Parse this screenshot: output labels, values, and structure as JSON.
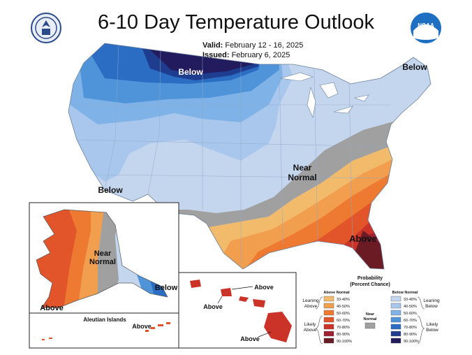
{
  "title": "6-10 Day Temperature Outlook",
  "valid_label": "Valid:",
  "valid_dates": "February 12 - 16, 2025",
  "issued_label": "Issued:",
  "issued_date": "February 6, 2025",
  "logos": {
    "left": "Department of Commerce seal",
    "right": "NOAA",
    "right_text": "NOAA"
  },
  "map_labels": {
    "below_north": "Below",
    "below_northeast": "Below",
    "below_west": "Below",
    "near_normal": "Near\nNormal",
    "above_southeast": "Above",
    "alaska_near_normal": "Near\nNormal",
    "alaska_below": "Below",
    "alaska_above": "Above",
    "aleutian_title": "Aleutian Islands",
    "aleutian_above": "Above",
    "hawaii_above_1": "Above",
    "hawaii_above_2": "Above",
    "hawaii_above_3": "Above"
  },
  "legend": {
    "title": "Probability",
    "subtitle": "(Percent Chance)",
    "above_header": "Above Normal",
    "below_header": "Below Normal",
    "near_label": "Near\nNormal",
    "above_items": [
      {
        "range": "33-40%",
        "color": "#f2bb6c"
      },
      {
        "range": "40-50%",
        "color": "#f19e4e"
      },
      {
        "range": "50-60%",
        "color": "#ee7a31"
      },
      {
        "range": "60-70%",
        "color": "#e2552a"
      },
      {
        "range": "70-80%",
        "color": "#cb3329"
      },
      {
        "range": "80-90%",
        "color": "#9d2231"
      },
      {
        "range": "90-100%",
        "color": "#6b1b24"
      }
    ],
    "below_items": [
      {
        "range": "33-40%",
        "color": "#c4d5ee"
      },
      {
        "range": "40-50%",
        "color": "#a9c7ec"
      },
      {
        "range": "50-60%",
        "color": "#7fb2e6"
      },
      {
        "range": "60-70%",
        "color": "#4f94d9"
      },
      {
        "range": "70-80%",
        "color": "#2a6dc2"
      },
      {
        "range": "80-90%",
        "color": "#1f3d8f"
      },
      {
        "range": "90-100%",
        "color": "#221c5e"
      }
    ],
    "near_color": "#a0a0a0",
    "brackets": {
      "leaning_above": "Leaning\nAbove",
      "likely_above": "Likely\nAbove",
      "leaning_below": "Leaning\nBelow",
      "likely_below": "Likely\nBelow"
    }
  }
}
